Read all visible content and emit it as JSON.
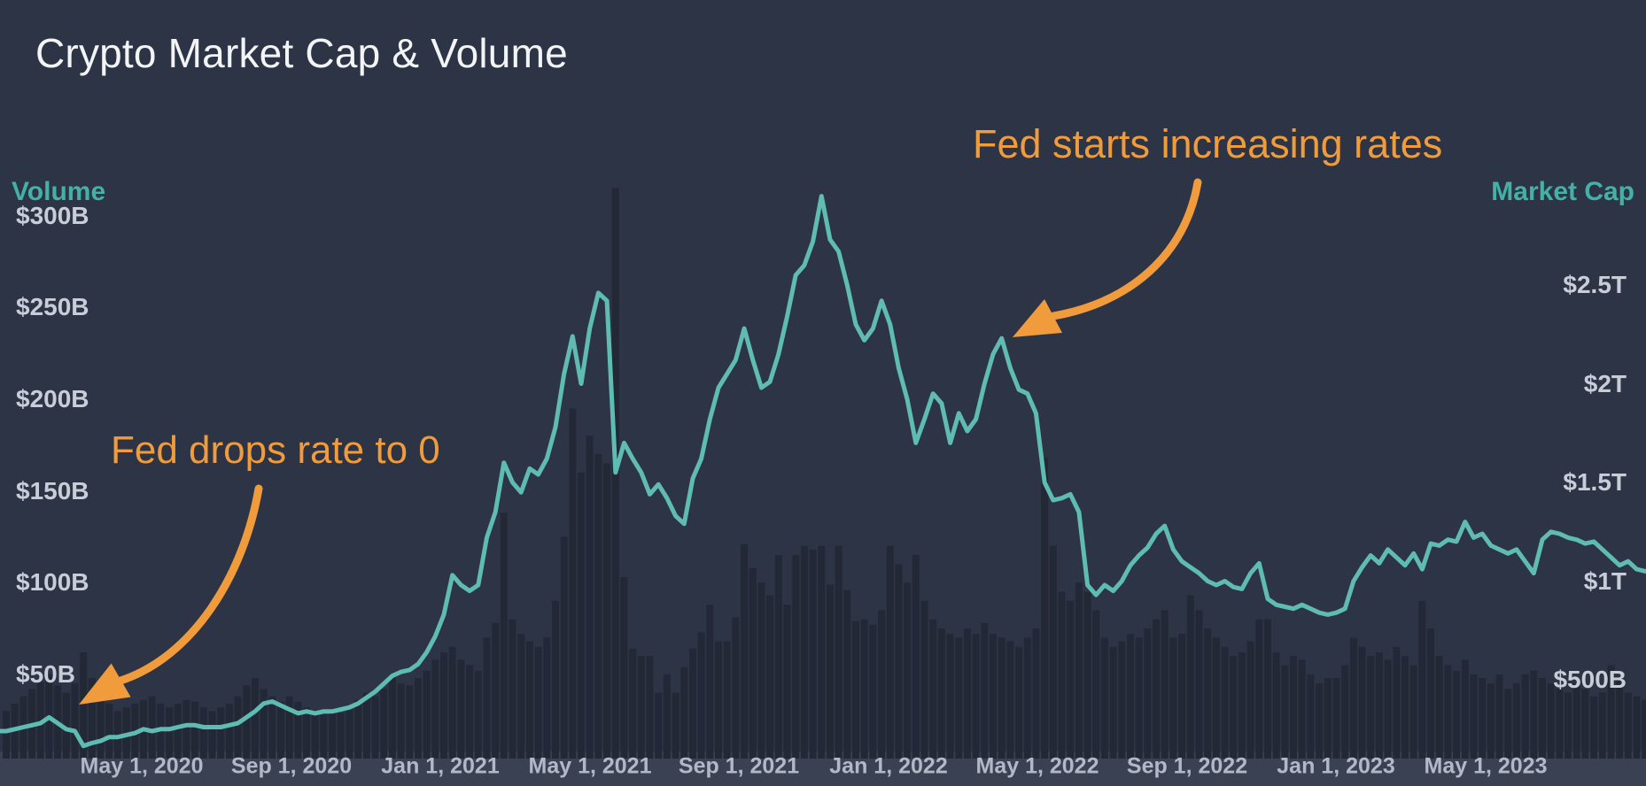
{
  "title": "Crypto Market Cap & Volume",
  "colors": {
    "background": "#2d3445",
    "plot_band": "#3a4152",
    "bar_fill": "#222836",
    "line": "#5fbcb2",
    "axis_title": "#45b0a7",
    "y_tick_text": "#c8cdd8",
    "x_tick_text": "#b2b8c7",
    "annotation_orange": "#f09b3c",
    "title_text": "#f3f4f6"
  },
  "chart_data": {
    "type": "combo",
    "title": "Crypto Market Cap & Volume",
    "grid": false,
    "legend_position": "none",
    "start_date": "2020-01-12",
    "interval": "weekly",
    "x_ticks": [
      "May 1, 2020",
      "Sep 1, 2020",
      "Jan 1, 2021",
      "May 1, 2021",
      "Sep 1, 2021",
      "Jan 1, 2022",
      "May 1, 2022",
      "Sep 1, 2022",
      "Jan 1, 2023",
      "May 1, 2023"
    ],
    "left_axis": {
      "title": "Volume",
      "unit": "$B",
      "ticks": [
        {
          "label": "$300B",
          "value": 300
        },
        {
          "label": "$250B",
          "value": 250
        },
        {
          "label": "$200B",
          "value": 200
        },
        {
          "label": "$150B",
          "value": 150
        },
        {
          "label": "$100B",
          "value": 100
        },
        {
          "label": "$50B",
          "value": 50
        }
      ],
      "range": [
        0,
        320
      ]
    },
    "right_axis": {
      "title": "Market Cap",
      "unit": "$T",
      "ticks": [
        {
          "label": "$2.5T",
          "value": 2.5
        },
        {
          "label": "$2T",
          "value": 2.0
        },
        {
          "label": "$1.5T",
          "value": 1.5
        },
        {
          "label": "$1T",
          "value": 1.0
        },
        {
          "label": "$500B",
          "value": 0.5
        }
      ],
      "range": [
        0,
        3.1
      ]
    },
    "series": [
      {
        "name": "Market Cap",
        "type": "line",
        "axis": "right",
        "unit": "$T",
        "color": "#5fbcb2",
        "values": [
          0.24,
          0.25,
          0.26,
          0.27,
          0.28,
          0.31,
          0.28,
          0.25,
          0.24,
          0.165,
          0.18,
          0.19,
          0.21,
          0.21,
          0.22,
          0.23,
          0.25,
          0.24,
          0.25,
          0.25,
          0.26,
          0.27,
          0.27,
          0.26,
          0.26,
          0.26,
          0.27,
          0.28,
          0.31,
          0.34,
          0.38,
          0.39,
          0.37,
          0.35,
          0.33,
          0.34,
          0.33,
          0.34,
          0.34,
          0.35,
          0.36,
          0.38,
          0.41,
          0.44,
          0.48,
          0.52,
          0.54,
          0.55,
          0.58,
          0.64,
          0.72,
          0.83,
          1.03,
          0.98,
          0.95,
          0.98,
          1.22,
          1.35,
          1.6,
          1.5,
          1.45,
          1.57,
          1.54,
          1.62,
          1.78,
          2.05,
          2.24,
          2.0,
          2.28,
          2.46,
          2.42,
          1.55,
          1.7,
          1.62,
          1.55,
          1.44,
          1.49,
          1.42,
          1.33,
          1.29,
          1.52,
          1.62,
          1.82,
          1.98,
          2.05,
          2.12,
          2.28,
          2.12,
          1.98,
          2.01,
          2.15,
          2.34,
          2.55,
          2.6,
          2.72,
          2.95,
          2.73,
          2.67,
          2.5,
          2.3,
          2.22,
          2.28,
          2.42,
          2.3,
          2.08,
          1.92,
          1.7,
          1.82,
          1.95,
          1.9,
          1.7,
          1.85,
          1.76,
          1.82,
          2.0,
          2.15,
          2.23,
          2.08,
          1.97,
          1.95,
          1.85,
          1.5,
          1.41,
          1.42,
          1.44,
          1.35,
          0.98,
          0.93,
          0.98,
          0.95,
          1.0,
          1.08,
          1.13,
          1.17,
          1.24,
          1.28,
          1.16,
          1.1,
          1.07,
          1.04,
          1.0,
          0.98,
          1.0,
          0.97,
          0.96,
          1.04,
          1.09,
          0.91,
          0.88,
          0.87,
          0.86,
          0.88,
          0.86,
          0.84,
          0.83,
          0.84,
          0.86,
          1.0,
          1.07,
          1.13,
          1.09,
          1.16,
          1.12,
          1.08,
          1.14,
          1.06,
          1.19,
          1.18,
          1.21,
          1.2,
          1.3,
          1.22,
          1.24,
          1.18,
          1.16,
          1.14,
          1.16,
          1.1,
          1.04,
          1.21,
          1.25,
          1.24,
          1.22,
          1.21,
          1.19,
          1.2,
          1.16,
          1.12,
          1.08,
          1.1,
          1.06,
          1.05
        ]
      },
      {
        "name": "Volume",
        "type": "bar",
        "axis": "left",
        "unit": "$B",
        "color": "#222836",
        "values": [
          30,
          34,
          38,
          42,
          46,
          50,
          44,
          40,
          45,
          62,
          48,
          40,
          34,
          30,
          32,
          34,
          36,
          38,
          34,
          32,
          34,
          36,
          35,
          32,
          30,
          32,
          34,
          38,
          44,
          48,
          42,
          38,
          35,
          38,
          35,
          32,
          30,
          28,
          30,
          29,
          32,
          36,
          40,
          38,
          42,
          48,
          45,
          44,
          48,
          52,
          58,
          62,
          65,
          58,
          55,
          52,
          70,
          78,
          138,
          80,
          72,
          68,
          65,
          70,
          90,
          125,
          195,
          160,
          180,
          170,
          165,
          315,
          103,
          64,
          60,
          60,
          40,
          50,
          40,
          54,
          64,
          73,
          88,
          68,
          68,
          81,
          121,
          108,
          100,
          93,
          115,
          88,
          115,
          120,
          118,
          120,
          99,
          120,
          96,
          79,
          80,
          77,
          85,
          120,
          110,
          100,
          115,
          90,
          80,
          75,
          72,
          70,
          75,
          72,
          78,
          72,
          70,
          68,
          65,
          70,
          75,
          168,
          120,
          95,
          90,
          100,
          95,
          85,
          70,
          65,
          68,
          72,
          70,
          75,
          80,
          85,
          70,
          72,
          93,
          85,
          75,
          70,
          65,
          60,
          62,
          68,
          80,
          80,
          62,
          55,
          60,
          58,
          50,
          45,
          48,
          48,
          55,
          70,
          65,
          60,
          62,
          58,
          65,
          60,
          55,
          90,
          75,
          60,
          55,
          52,
          58,
          50,
          48,
          45,
          50,
          42,
          45,
          50,
          52,
          48,
          45,
          42,
          40,
          45,
          42,
          38,
          40,
          55,
          48,
          40,
          38,
          36
        ]
      }
    ],
    "annotations": [
      {
        "text": "Fed drops rate to 0",
        "points_to_date": "2020-03-15",
        "color": "#f09b3c"
      },
      {
        "text": "Fed starts increasing rates",
        "points_to_date": "2022-04-01",
        "color": "#f09b3c"
      }
    ]
  }
}
